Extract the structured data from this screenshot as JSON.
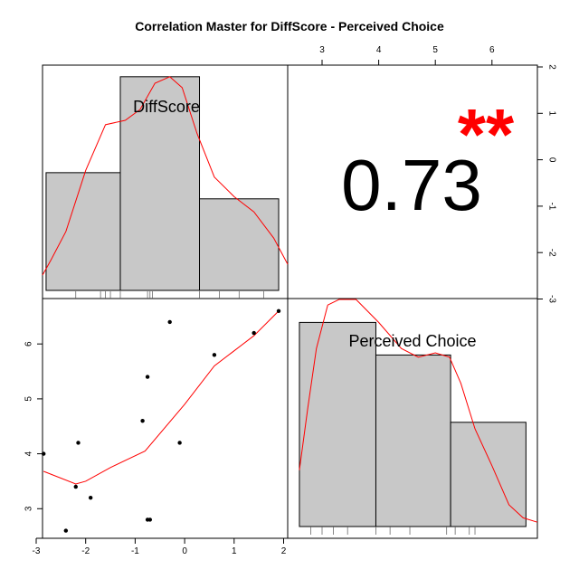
{
  "chart_data": {
    "type": "scatter",
    "title": "Correlation Master for DiffScore - Perceived Choice",
    "variables": [
      "DiffScore",
      "Perceived Choice"
    ],
    "correlation": {
      "value": "0.73",
      "stars": "**"
    },
    "colors": {
      "bars": "#c8c8c8",
      "density": "#ff0000",
      "stars": "#ff0000",
      "points": "#000000"
    },
    "x_axis": {
      "range": [
        -3.1,
        2.1
      ],
      "ticks": [
        -3,
        -2,
        -1,
        0,
        1,
        2
      ]
    },
    "y_axis": {
      "range": [
        2.5,
        6.7
      ],
      "ticks": [
        3,
        4,
        5,
        6
      ]
    },
    "top_axis": {
      "ticks": [
        3,
        4,
        5,
        6
      ]
    },
    "right_axis": {
      "ticks": [
        2,
        1,
        0,
        -1,
        -2,
        -3
      ]
    },
    "scatter": {
      "x": [
        -2.85,
        -2.15,
        -1.9,
        -2.4,
        -2.2,
        -0.85,
        -0.75,
        -0.7,
        -0.75,
        -0.3,
        -0.1,
        0.6,
        1.4,
        1.9
      ],
      "y": [
        4.0,
        4.2,
        3.2,
        2.6,
        3.4,
        4.6,
        5.4,
        2.8,
        2.8,
        6.4,
        4.2,
        5.8,
        6.2,
        6.6
      ]
    },
    "smooth_line": {
      "x": [
        -2.85,
        -2.2,
        -2.0,
        -1.5,
        -0.8,
        0.0,
        0.6,
        1.4,
        1.9
      ],
      "y": [
        3.68,
        3.45,
        3.5,
        3.75,
        4.05,
        4.9,
        5.6,
        6.15,
        6.6
      ]
    },
    "histogram_diffscore": {
      "bins": [
        [
          -2.8,
          -1.3
        ],
        [
          -1.3,
          0.3
        ],
        [
          0.3,
          1.9
        ]
      ],
      "heights": [
        0.54,
        0.98,
        0.42
      ],
      "rug": [
        -2.2,
        -1.7,
        -1.6,
        -1.5,
        -1.3,
        -0.75,
        -0.7,
        -0.65,
        0.3,
        0.7,
        1.1,
        1.6
      ]
    },
    "histogram_perceived": {
      "bins": [
        [
          2.6,
          3.95
        ],
        [
          3.95,
          5.27
        ],
        [
          5.27,
          6.6
        ]
      ],
      "heights": [
        0.94,
        0.79,
        0.48
      ],
      "rug": [
        2.8,
        3.0,
        3.2,
        3.45,
        3.95,
        4.2,
        4.55,
        5.2,
        5.35,
        5.6,
        5.7
      ]
    },
    "density_diffscore": {
      "x": [
        -3.0,
        -2.7,
        -2.4,
        -2.0,
        -1.6,
        -1.2,
        -0.9,
        -0.6,
        -0.3,
        -0.05,
        0.25,
        0.6,
        1.0,
        1.4,
        1.8,
        2.1
      ],
      "y": [
        0.07,
        0.14,
        0.27,
        0.55,
        0.76,
        0.78,
        0.83,
        0.95,
        0.98,
        0.93,
        0.72,
        0.52,
        0.43,
        0.36,
        0.24,
        0.12
      ]
    },
    "density_perceived": {
      "x": [
        2.6,
        2.75,
        2.9,
        3.1,
        3.3,
        3.6,
        4.0,
        4.4,
        4.7,
        5.0,
        5.25,
        5.45,
        5.7,
        6.0,
        6.3,
        6.55,
        6.8
      ],
      "y": [
        0.26,
        0.55,
        0.82,
        1.02,
        1.12,
        1.08,
        0.94,
        0.82,
        0.78,
        0.8,
        0.78,
        0.66,
        0.45,
        0.28,
        0.1,
        0.04,
        0.02
      ]
    }
  }
}
